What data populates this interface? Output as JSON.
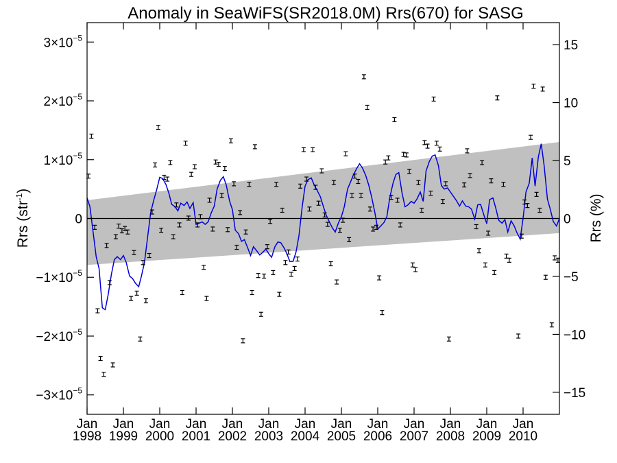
{
  "chart_data": {
    "type": "scatter",
    "title": "Anomaly in SeaWiFS(SR2018.0M) Rrs(670) for SASG",
    "ylabel_left": {
      "text": "Rrs (str",
      "sup": "-1",
      "suffix": ")"
    },
    "ylabel_right": "Rrs (%)",
    "x_range": [
      1998.0,
      2011.0
    ],
    "y_range": [
      -3.33e-05,
      3.33e-05
    ],
    "y2_range": [
      -16.9,
      16.9
    ],
    "x_ticks": [
      {
        "value": 1998,
        "label": "Jan",
        "year": "1998"
      },
      {
        "value": 1999,
        "label": "Jan",
        "year": "1999"
      },
      {
        "value": 2000,
        "label": "Jan",
        "year": "2000"
      },
      {
        "value": 2001,
        "label": "Jan",
        "year": "2001"
      },
      {
        "value": 2002,
        "label": "Jan",
        "year": "2002"
      },
      {
        "value": 2003,
        "label": "Jan",
        "year": "2003"
      },
      {
        "value": 2004,
        "label": "Jan",
        "year": "2004"
      },
      {
        "value": 2005,
        "label": "Jan",
        "year": "2005"
      },
      {
        "value": 2006,
        "label": "Jan",
        "year": "2006"
      },
      {
        "value": 2007,
        "label": "Jan",
        "year": "2007"
      },
      {
        "value": 2008,
        "label": "Jan",
        "year": "2008"
      },
      {
        "value": 2009,
        "label": "Jan",
        "year": "2009"
      },
      {
        "value": 2010,
        "label": "Jan",
        "year": "2010"
      }
    ],
    "y_ticks": [
      {
        "value": 3e-05,
        "base": "3×10",
        "exp": "−5"
      },
      {
        "value": 2e-05,
        "base": "2×10",
        "exp": "−5"
      },
      {
        "value": 1e-05,
        "base": "1×10",
        "exp": "−5"
      },
      {
        "value": 0,
        "base": "0",
        "exp": ""
      },
      {
        "value": -1e-05,
        "base": "−1×10",
        "exp": "−5"
      },
      {
        "value": -2e-05,
        "base": "−2×10",
        "exp": "−5"
      },
      {
        "value": -3e-05,
        "base": "−3×10",
        "exp": "−5"
      }
    ],
    "y2_ticks": [
      {
        "value": 15,
        "label": "15"
      },
      {
        "value": 10,
        "label": "10"
      },
      {
        "value": 5,
        "label": "5"
      },
      {
        "value": 0,
        "label": "0"
      },
      {
        "value": -5,
        "label": "−5"
      },
      {
        "value": -10,
        "label": "−10"
      },
      {
        "value": -15,
        "label": "−15"
      }
    ],
    "zero_line": 0,
    "band": {
      "color": "#c0c0c0",
      "upper": [
        [
          1998.0,
          3.1e-06
        ],
        [
          2011.0,
          1.3e-05
        ]
      ],
      "lower": [
        [
          1998.0,
          -7.9e-06
        ],
        [
          2011.0,
          -2.5e-06
        ]
      ]
    },
    "points_color": "#000000",
    "points": [
      [
        1998.04,
        7.2e-06
      ],
      [
        1998.12,
        1.4e-05
      ],
      [
        1998.21,
        -1.5e-06
      ],
      [
        1998.29,
        -1.57e-05
      ],
      [
        1998.37,
        -2.38e-05
      ],
      [
        1998.46,
        -2.65e-05
      ],
      [
        1998.54,
        -4.6e-06
      ],
      [
        1998.62,
        -1.09e-05
      ],
      [
        1998.71,
        -2.49e-05
      ],
      [
        1998.79,
        -3.1e-06
      ],
      [
        1998.87,
        -1.3e-06
      ],
      [
        1998.96,
        -2.1e-06
      ],
      [
        1999.04,
        -1.7e-06
      ],
      [
        1999.12,
        -2.3e-06
      ],
      [
        1999.21,
        -1.36e-05
      ],
      [
        1999.29,
        -5.8e-06
      ],
      [
        1999.37,
        -1.27e-05
      ],
      [
        1999.46,
        -2.05e-05
      ],
      [
        1999.54,
        -7.5e-06
      ],
      [
        1999.62,
        -1.4e-05
      ],
      [
        1999.71,
        -6.3e-06
      ],
      [
        1999.79,
        1.1e-06
      ],
      [
        1999.87,
        9.1e-06
      ],
      [
        1999.96,
        1.55e-05
      ],
      [
        2000.04,
        -2e-06
      ],
      [
        2000.12,
        7e-06
      ],
      [
        2000.21,
        6.7e-06
      ],
      [
        2000.29,
        9.5e-06
      ],
      [
        2000.37,
        -3.1e-06
      ],
      [
        2000.46,
        2.3e-06
      ],
      [
        2000.54,
        -1.1e-06
      ],
      [
        2000.62,
        -1.26e-05
      ],
      [
        2000.71,
        1.28e-05
      ],
      [
        2000.79,
        6e-08
      ],
      [
        2000.87,
        7.5e-06
      ],
      [
        2000.96,
        8.8e-06
      ],
      [
        2001.04,
        -1.1e-06
      ],
      [
        2001.12,
        3e-07
      ],
      [
        2001.21,
        -8.3e-06
      ],
      [
        2001.29,
        -1.36e-05
      ],
      [
        2001.37,
        3.1e-06
      ],
      [
        2001.46,
        -1.8e-06
      ],
      [
        2001.54,
        9.6e-06
      ],
      [
        2001.62,
        9.2e-06
      ],
      [
        2001.71,
        3.9e-06
      ],
      [
        2001.79,
        8.5e-06
      ],
      [
        2001.87,
        -1.9e-06
      ],
      [
        2001.96,
        1.32e-05
      ],
      [
        2002.04,
        5.9e-06
      ],
      [
        2002.12,
        -4.9e-06
      ],
      [
        2002.21,
        1e-06
      ],
      [
        2002.29,
        -2.08e-05
      ],
      [
        2002.37,
        -2.3e-06
      ],
      [
        2002.46,
        5.8e-06
      ],
      [
        2002.54,
        -1.26e-05
      ],
      [
        2002.62,
        1.22e-05
      ],
      [
        2002.71,
        -9.7e-06
      ],
      [
        2002.79,
        -1.63e-05
      ],
      [
        2002.87,
        -9.8e-06
      ],
      [
        2002.96,
        -4.8e-06
      ],
      [
        2003.04,
        -5e-07
      ],
      [
        2003.12,
        -9.2e-06
      ],
      [
        2003.21,
        5.8e-06
      ],
      [
        2003.29,
        -1.29e-05
      ],
      [
        2003.37,
        1.4e-06
      ],
      [
        2003.46,
        -7.5e-06
      ],
      [
        2003.54,
        -5.7e-06
      ],
      [
        2003.62,
        -9.5e-06
      ],
      [
        2003.71,
        -8.5e-06
      ],
      [
        2003.79,
        -6.9e-06
      ],
      [
        2003.87,
        5.5e-06
      ],
      [
        2003.96,
        1.17e-05
      ],
      [
        2004.04,
        6.7e-06
      ],
      [
        2004.12,
        1.6e-06
      ],
      [
        2004.21,
        1.17e-05
      ],
      [
        2004.29,
        5.3e-06
      ],
      [
        2004.37,
        2.6e-06
      ],
      [
        2004.46,
        8.1e-06
      ],
      [
        2004.54,
        6e-07
      ],
      [
        2004.62,
        -1e-06
      ],
      [
        2004.71,
        -7.7e-06
      ],
      [
        2004.79,
        6.1e-06
      ],
      [
        2004.87,
        -1.08e-05
      ],
      [
        2004.96,
        -2e-06
      ],
      [
        2005.04,
        -3e-07
      ],
      [
        2005.12,
        1.1e-05
      ],
      [
        2005.21,
        -3.6e-06
      ],
      [
        2005.29,
        3.9e-06
      ],
      [
        2005.37,
        7.2e-06
      ],
      [
        2005.46,
        6.3e-06
      ],
      [
        2005.54,
        3.9e-06
      ],
      [
        2005.62,
        2.41e-05
      ],
      [
        2005.71,
        1.89e-05
      ],
      [
        2005.79,
        1.6e-06
      ],
      [
        2005.87,
        -1.8e-06
      ],
      [
        2005.96,
        -1.5e-06
      ],
      [
        2006.04,
        -1.01e-05
      ],
      [
        2006.12,
        -1.6e-05
      ],
      [
        2006.21,
        9.6e-06
      ],
      [
        2006.29,
        1.03e-05
      ],
      [
        2006.37,
        3.6e-06
      ],
      [
        2006.46,
        1.68e-05
      ],
      [
        2006.54,
        3.1e-06
      ],
      [
        2006.62,
        -1.1e-06
      ],
      [
        2006.71,
        1.09e-05
      ],
      [
        2006.79,
        1.08e-05
      ],
      [
        2006.87,
        8e-06
      ],
      [
        2006.96,
        -7.9e-06
      ],
      [
        2007.04,
        -8.7e-06
      ],
      [
        2007.12,
        6.1e-06
      ],
      [
        2007.21,
        1.4e-06
      ],
      [
        2007.29,
        1.29e-05
      ],
      [
        2007.37,
        1.23e-05
      ],
      [
        2007.46,
        4.3e-06
      ],
      [
        2007.54,
        2.03e-05
      ],
      [
        2007.62,
        1.28e-05
      ],
      [
        2007.71,
        1.18e-05
      ],
      [
        2007.79,
        2.9e-06
      ],
      [
        2007.87,
        5.9e-06
      ],
      [
        2007.96,
        -2.05e-05
      ],
      [
        2008.38,
        5.7e-06
      ],
      [
        2008.46,
        1.15e-05
      ],
      [
        2008.54,
        7.3e-06
      ],
      [
        2008.71,
        -1.4e-06
      ],
      [
        2008.79,
        -5.5e-06
      ],
      [
        2008.87,
        9.5e-06
      ],
      [
        2008.96,
        -7.9e-06
      ],
      [
        2009.04,
        -2.5e-06
      ],
      [
        2009.12,
        6.4e-06
      ],
      [
        2009.21,
        -9.2e-06
      ],
      [
        2009.29,
        2.05e-05
      ],
      [
        2009.46,
        5.8e-06
      ],
      [
        2009.54,
        -6.4e-06
      ],
      [
        2009.62,
        -7.1e-06
      ],
      [
        2009.87,
        -2e-05
      ],
      [
        2009.96,
        -3e-06
      ],
      [
        2010.04,
        2.8e-06
      ],
      [
        2010.12,
        2.2e-06
      ],
      [
        2010.21,
        1.38e-05
      ],
      [
        2010.29,
        2.25e-05
      ],
      [
        2010.37,
        4.1e-06
      ],
      [
        2010.46,
        1.4e-06
      ],
      [
        2010.54,
        2.2e-05
      ],
      [
        2010.62,
        -1e-05
      ],
      [
        2010.79,
        -1.81e-05
      ],
      [
        2010.87,
        -6.7e-06
      ],
      [
        2010.96,
        -7.1e-06
      ]
    ],
    "line_color": "#0000dd",
    "line": [
      [
        1998.0,
        3.5e-06
      ],
      [
        1998.08,
        2e-06
      ],
      [
        1998.17,
        -2.5e-06
      ],
      [
        1998.25,
        -6.5e-06
      ],
      [
        1998.33,
        -8.5e-06
      ],
      [
        1998.42,
        -1.52e-05
      ],
      [
        1998.5,
        -1.55e-05
      ],
      [
        1998.58,
        -1.3e-05
      ],
      [
        1998.67,
        -9.5e-06
      ],
      [
        1998.75,
        -7e-06
      ],
      [
        1998.83,
        -6.5e-06
      ],
      [
        1998.92,
        -7e-06
      ],
      [
        1999.0,
        -6.3e-06
      ],
      [
        1999.08,
        -7.5e-06
      ],
      [
        1999.17,
        -9.8e-06
      ],
      [
        1999.25,
        -1.02e-05
      ],
      [
        1999.33,
        -1.1e-05
      ],
      [
        1999.42,
        -1.16e-05
      ],
      [
        1999.5,
        -9.7e-06
      ],
      [
        1999.58,
        -7.5e-06
      ],
      [
        1999.67,
        -3e-06
      ],
      [
        1999.75,
        1e-06
      ],
      [
        1999.83,
        3e-06
      ],
      [
        1999.92,
        5e-06
      ],
      [
        2000.0,
        7e-06
      ],
      [
        2000.08,
        6.8e-06
      ],
      [
        2000.17,
        5.8e-06
      ],
      [
        2000.25,
        4.3e-06
      ],
      [
        2000.33,
        2.4e-06
      ],
      [
        2000.42,
        2e-06
      ],
      [
        2000.5,
        1.3e-06
      ],
      [
        2000.58,
        2.6e-06
      ],
      [
        2000.67,
        2.2e-06
      ],
      [
        2000.75,
        2.8e-06
      ],
      [
        2000.83,
        1.7e-06
      ],
      [
        2000.92,
        2.7e-06
      ],
      [
        2001.0,
        -1e-06
      ],
      [
        2001.08,
        -8e-07
      ],
      [
        2001.17,
        -6e-07
      ],
      [
        2001.25,
        -1e-06
      ],
      [
        2001.33,
        -6e-07
      ],
      [
        2001.42,
        1e-06
      ],
      [
        2001.5,
        2.1e-06
      ],
      [
        2001.58,
        5e-06
      ],
      [
        2001.67,
        6.5e-06
      ],
      [
        2001.75,
        7.1e-06
      ],
      [
        2001.83,
        5.7e-06
      ],
      [
        2001.92,
        3e-06
      ],
      [
        2002.0,
        1.5e-06
      ],
      [
        2002.08,
        -2e-06
      ],
      [
        2002.17,
        -2.6e-06
      ],
      [
        2002.25,
        -3.9e-06
      ],
      [
        2002.33,
        -3.6e-06
      ],
      [
        2002.42,
        -5e-06
      ],
      [
        2002.5,
        -6.3e-06
      ],
      [
        2002.58,
        -4.8e-06
      ],
      [
        2002.67,
        -5.5e-06
      ],
      [
        2002.75,
        -6.2e-06
      ],
      [
        2002.83,
        -5.8e-06
      ],
      [
        2002.92,
        -5.2e-06
      ],
      [
        2003.0,
        -6e-06
      ],
      [
        2003.08,
        -6.6e-06
      ],
      [
        2003.17,
        -4.8e-06
      ],
      [
        2003.25,
        -4e-06
      ],
      [
        2003.33,
        -4.1e-06
      ],
      [
        2003.42,
        -5e-06
      ],
      [
        2003.5,
        -6e-06
      ],
      [
        2003.58,
        -7.3e-06
      ],
      [
        2003.67,
        -7.3e-06
      ],
      [
        2003.75,
        -5.7e-06
      ],
      [
        2003.83,
        -3e-06
      ],
      [
        2003.92,
        2e-06
      ],
      [
        2004.0,
        5.5e-06
      ],
      [
        2004.08,
        6.6e-06
      ],
      [
        2004.17,
        6.9e-06
      ],
      [
        2004.25,
        5.7e-06
      ],
      [
        2004.33,
        4.8e-06
      ],
      [
        2004.42,
        3.7e-06
      ],
      [
        2004.5,
        2.1e-06
      ],
      [
        2004.58,
        6e-07
      ],
      [
        2004.67,
        -6e-07
      ],
      [
        2004.75,
        -1.6e-06
      ],
      [
        2004.83,
        -2.3e-06
      ],
      [
        2004.92,
        -7e-07
      ],
      [
        2005.0,
        3e-07
      ],
      [
        2005.08,
        2e-06
      ],
      [
        2005.17,
        5e-06
      ],
      [
        2005.25,
        6.2e-06
      ],
      [
        2005.33,
        7.4e-06
      ],
      [
        2005.42,
        8.5e-06
      ],
      [
        2005.5,
        9.3e-06
      ],
      [
        2005.58,
        8.6e-06
      ],
      [
        2005.67,
        7.3e-06
      ],
      [
        2005.75,
        5.7e-06
      ],
      [
        2005.83,
        3.7e-06
      ],
      [
        2005.92,
        1e-06
      ],
      [
        2006.0,
        -1.8e-06
      ],
      [
        2006.08,
        -1.3e-06
      ],
      [
        2006.17,
        -7e-07
      ],
      [
        2006.25,
        3e-07
      ],
      [
        2006.33,
        3.5e-06
      ],
      [
        2006.42,
        6e-06
      ],
      [
        2006.5,
        7.5e-06
      ],
      [
        2006.58,
        7.8e-06
      ],
      [
        2006.67,
        4.3e-06
      ],
      [
        2006.75,
        2e-06
      ],
      [
        2006.83,
        2.3e-06
      ],
      [
        2006.92,
        2.9e-06
      ],
      [
        2007.0,
        2.6e-06
      ],
      [
        2007.08,
        3.3e-06
      ],
      [
        2007.17,
        4.5e-06
      ],
      [
        2007.25,
        2.9e-06
      ],
      [
        2007.33,
        8.1e-06
      ],
      [
        2007.42,
        9.7e-06
      ],
      [
        2007.5,
        1.06e-05
      ],
      [
        2007.58,
        1.08e-05
      ],
      [
        2007.67,
        9e-06
      ],
      [
        2007.75,
        5.6e-06
      ],
      [
        2007.83,
        5e-06
      ],
      [
        2007.92,
        5.2e-06
      ],
      [
        2008.0,
        4.5e-06
      ],
      [
        2008.08,
        3.8e-06
      ],
      [
        2008.17,
        3e-06
      ],
      [
        2008.25,
        2.1e-06
      ],
      [
        2008.33,
        3e-06
      ],
      [
        2008.42,
        2.1e-06
      ],
      [
        2008.5,
        2e-06
      ],
      [
        2008.58,
        1.6e-06
      ],
      [
        2008.67,
        -1e-07
      ],
      [
        2008.75,
        2.3e-06
      ],
      [
        2008.83,
        2.4e-06
      ],
      [
        2008.92,
        6e-07
      ],
      [
        2009.0,
        -9e-07
      ],
      [
        2009.08,
        3.2e-06
      ],
      [
        2009.17,
        3.5e-06
      ],
      [
        2009.25,
        1.7e-06
      ],
      [
        2009.33,
        -3e-07
      ],
      [
        2009.42,
        -8e-07
      ],
      [
        2009.5,
        -2e-07
      ],
      [
        2009.58,
        -2.3e-06
      ],
      [
        2009.67,
        -4e-07
      ],
      [
        2009.75,
        -1.2e-06
      ],
      [
        2009.83,
        -2.4e-06
      ],
      [
        2009.92,
        -3.5e-06
      ],
      [
        2010.0,
        0.0
      ],
      [
        2010.08,
        4.5e-06
      ],
      [
        2010.17,
        6e-06
      ],
      [
        2010.25,
        1.03e-05
      ],
      [
        2010.33,
        5.5e-06
      ],
      [
        2010.42,
        1.05e-05
      ],
      [
        2010.5,
        1.27e-05
      ],
      [
        2010.58,
        9e-06
      ],
      [
        2010.67,
        3.3e-06
      ],
      [
        2010.75,
        1.5e-06
      ],
      [
        2010.83,
        -5e-07
      ],
      [
        2010.92,
        -1.3e-06
      ],
      [
        2011.0,
        0.0
      ]
    ],
    "grid": false,
    "legend": "none"
  }
}
